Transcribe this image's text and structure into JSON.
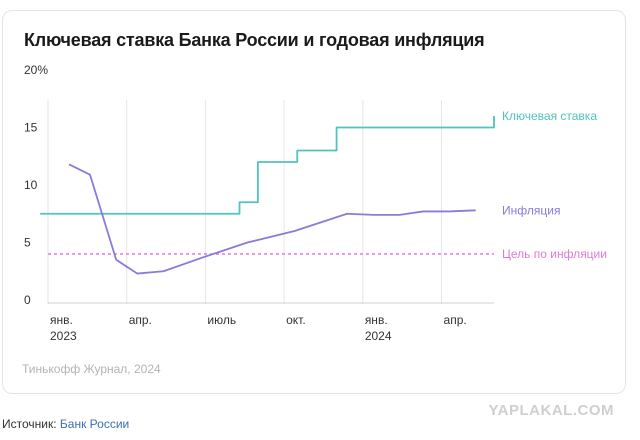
{
  "title": "Ключевая ставка Банка России и годовая инфляция",
  "credit": "Тинькофф Журнал, 2024",
  "source": {
    "label": "Источник:",
    "link": "Банк России"
  },
  "watermark": "YAPLAKAL.COM",
  "chart_data": {
    "type": "line",
    "ylim": [
      0,
      20
    ],
    "yticks": [
      {
        "value": 0,
        "label": "0"
      },
      {
        "value": 5,
        "label": "5"
      },
      {
        "value": 10,
        "label": "10"
      },
      {
        "value": 15,
        "label": "15"
      },
      {
        "value": 20,
        "label": "20%"
      }
    ],
    "xlim": [
      0,
      17
    ],
    "xticks": [
      {
        "month": 0,
        "label": "янв.",
        "label2": "2023"
      },
      {
        "month": 3,
        "label": "апр.",
        "label2": ""
      },
      {
        "month": 6,
        "label": "июль",
        "label2": ""
      },
      {
        "month": 9,
        "label": "окт.",
        "label2": ""
      },
      {
        "month": 12,
        "label": "янв.",
        "label2": "2024"
      },
      {
        "month": 15,
        "label": "апр.",
        "label2": ""
      }
    ],
    "series": [
      {
        "name": "Ключевая ставка",
        "color": "#4fc3bc",
        "step": true,
        "x": [
          -0.3,
          6.5,
          7.3,
          8.0,
          9.5,
          11.0,
          17.0
        ],
        "values": [
          7.5,
          7.5,
          8.5,
          12.0,
          13.0,
          15.0,
          16.0
        ]
      },
      {
        "name": "Инфляция",
        "color": "#8a7bd9",
        "step": false,
        "x": [
          0.8,
          1.6,
          2.6,
          3.4,
          4.4,
          5.9,
          7.6,
          9.4,
          11.4,
          12.4,
          13.4,
          14.3,
          15.3,
          16.3
        ],
        "values": [
          11.8,
          10.9,
          3.5,
          2.3,
          2.5,
          3.7,
          5.0,
          6.0,
          7.5,
          7.4,
          7.4,
          7.7,
          7.7,
          7.8
        ]
      }
    ],
    "target": {
      "label": "Цель по инфляции",
      "value": 4,
      "color": "#e07ad6"
    }
  }
}
